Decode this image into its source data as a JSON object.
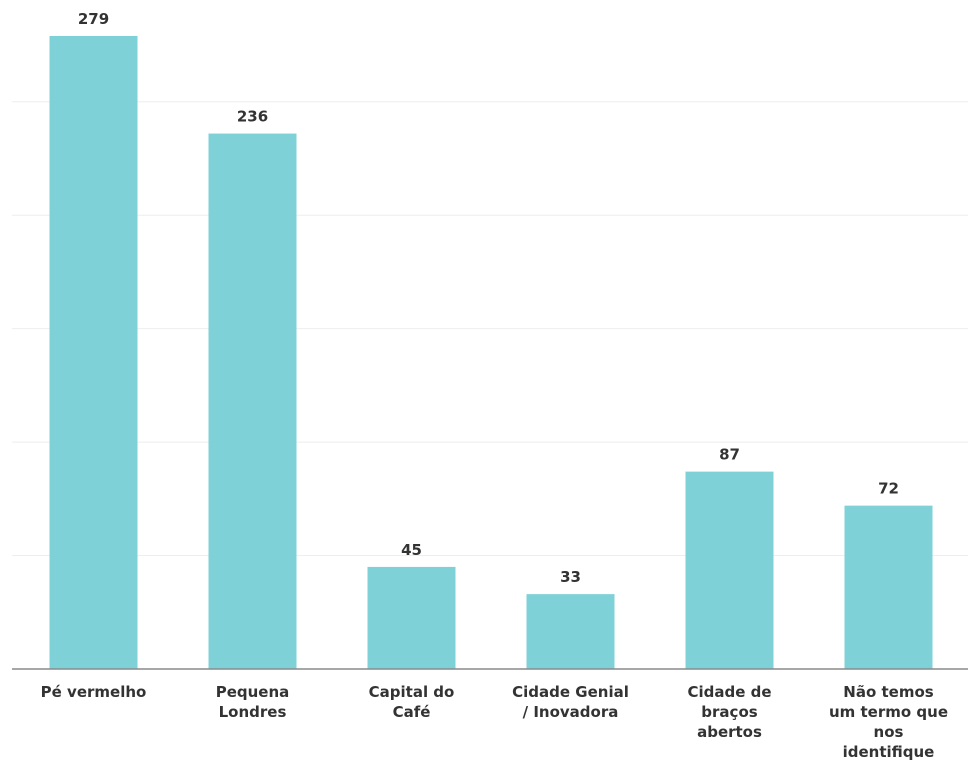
{
  "chart_data": {
    "type": "bar",
    "categories": [
      [
        "Pé vermelho"
      ],
      [
        "Pequena",
        "Londres"
      ],
      [
        "Capital do",
        "Café"
      ],
      [
        "Cidade Genial",
        "/ Inovadora"
      ],
      [
        "Cidade de",
        "braços",
        "abertos"
      ],
      [
        "Não temos",
        "um termo que",
        "nos",
        "identifique"
      ]
    ],
    "values": [
      279,
      236,
      45,
      33,
      87,
      72
    ],
    "title": "",
    "xlabel": "",
    "ylabel": "",
    "ylim": [
      0,
      300
    ],
    "grid": true,
    "legend": "none",
    "colors": {
      "bar": "#7fd1d8",
      "text": "#333333",
      "grid": "#eeeeee",
      "axis": "#8a8a8a"
    }
  }
}
